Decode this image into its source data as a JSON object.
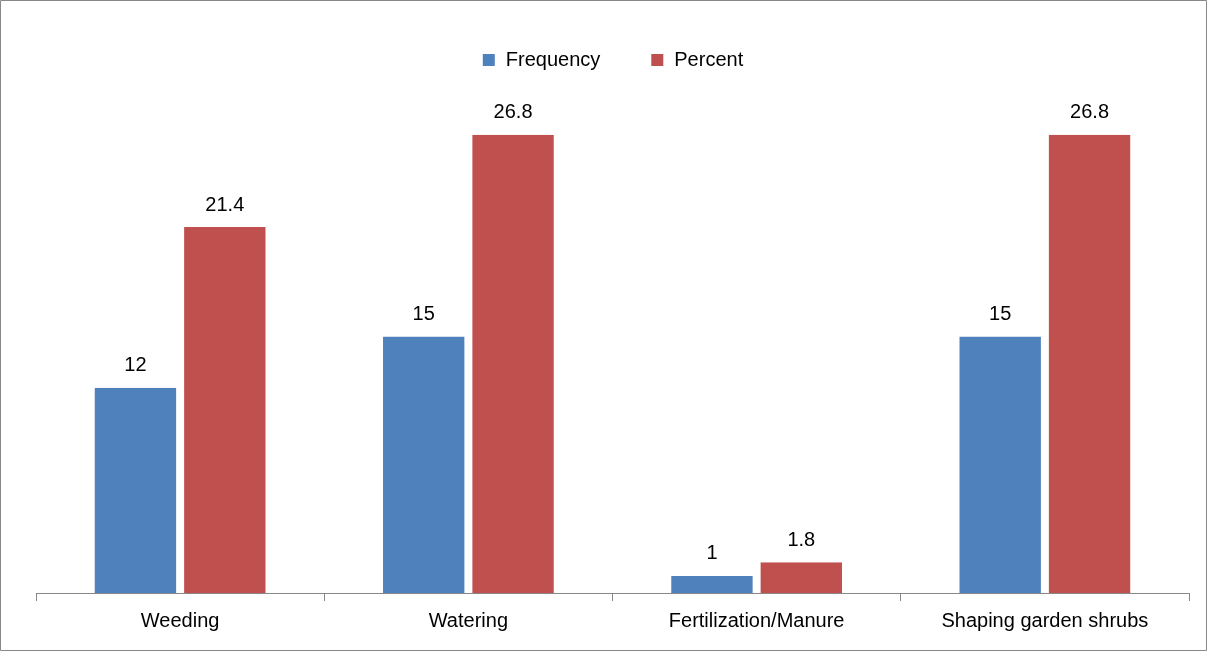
{
  "chart_data": {
    "type": "bar",
    "categories": [
      "Weeding",
      "Watering",
      "Fertilization/Manure",
      "Shaping garden shrubs"
    ],
    "series": [
      {
        "name": "Frequency",
        "color": "#4f81bd",
        "values": [
          12,
          15,
          1,
          15
        ]
      },
      {
        "name": "Percent",
        "color": "#c0504d",
        "values": [
          21.4,
          26.8,
          1.8,
          26.8
        ]
      }
    ],
    "data_labels": true,
    "legend": "top",
    "grid": false,
    "tick_labels": "x"
  }
}
